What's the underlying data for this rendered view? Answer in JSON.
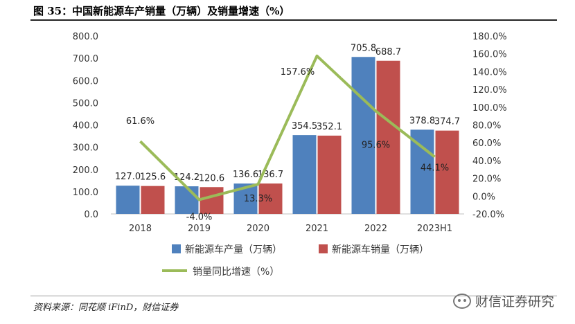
{
  "header": {
    "title": "图 35：中国新能源车产销量（万辆）及销量增速（%）"
  },
  "footer": {
    "source": "资料来源：同花顺 iFinD，财信证券",
    "watermark": "财信证券研究"
  },
  "chart_data": {
    "type": "bar",
    "title": "中国新能源车产销量（万辆）及销量增速（%）",
    "categories": [
      "2018",
      "2019",
      "2020",
      "2021",
      "2022",
      "2023H1"
    ],
    "series": [
      {
        "name": "新能源车产量（万辆）",
        "type": "bar",
        "axis": "left",
        "color": "#4f81bd",
        "values": [
          127.0,
          124.2,
          136.6,
          354.5,
          705.8,
          378.8
        ],
        "labels": [
          "127.0",
          "124.2",
          "136.6",
          "354.5",
          "705.8",
          "378.8"
        ]
      },
      {
        "name": "新能源车销量（万辆）",
        "type": "bar",
        "axis": "left",
        "color": "#c0504d",
        "values": [
          125.6,
          120.6,
          136.7,
          352.1,
          688.7,
          374.7
        ],
        "labels": [
          "125.6",
          "120.6",
          "136.7",
          "352.1",
          "688.7",
          "374.7"
        ]
      },
      {
        "name": "销量同比增速（%）",
        "type": "line",
        "axis": "right",
        "color": "#9bbb59",
        "values": [
          61.6,
          -4.0,
          13.3,
          157.6,
          95.6,
          44.1
        ],
        "labels": [
          "61.6%",
          "-4.0%",
          "13.3%",
          "157.6%",
          "95.6%",
          "44.1%"
        ]
      }
    ],
    "y_left": {
      "min": 0,
      "max": 800,
      "step": 100,
      "ticks": [
        "0.0",
        "100.0",
        "200.0",
        "300.0",
        "400.0",
        "500.0",
        "600.0",
        "700.0",
        "800.0"
      ]
    },
    "y_right": {
      "min": -20,
      "max": 180,
      "step": 20,
      "ticks": [
        "-20.0%",
        "0.0%",
        "20.0%",
        "40.0%",
        "60.0%",
        "80.0%",
        "100.0%",
        "120.0%",
        "140.0%",
        "160.0%",
        "180.0%"
      ]
    },
    "grid": false,
    "legend_position": "bottom"
  }
}
